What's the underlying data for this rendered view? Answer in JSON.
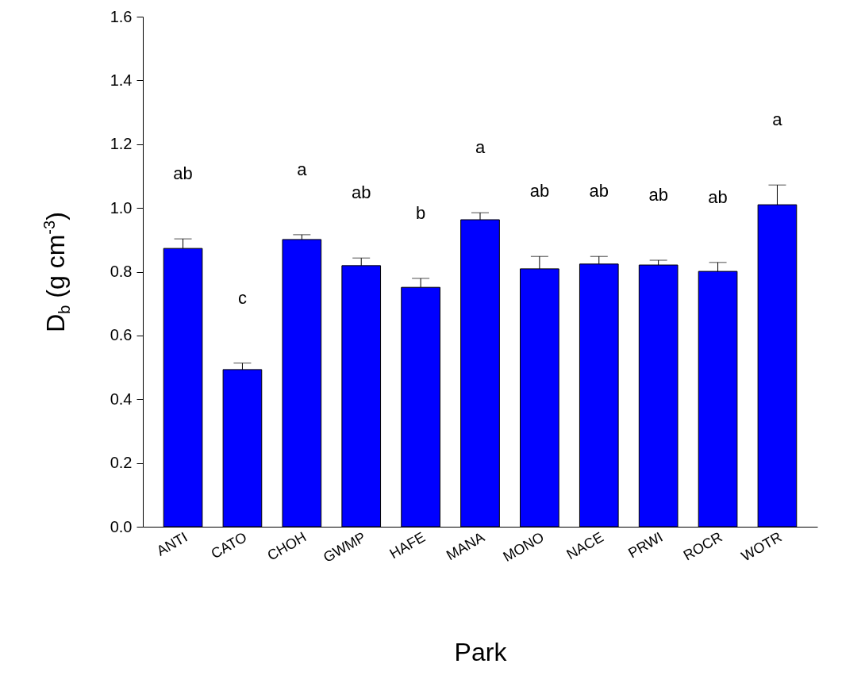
{
  "chart_data": {
    "type": "bar",
    "xlabel": "Park",
    "ylabel": "D$_{b}$ (g cm$^{-3}$)",
    "categories": [
      "ANTI",
      "CATO",
      "CHOH",
      "GWMP",
      "HAFE",
      "MANA",
      "MONO",
      "NACE",
      "PRWI",
      "ROCR",
      "WOTR"
    ],
    "values": [
      0.873,
      0.493,
      0.901,
      0.819,
      0.751,
      0.963,
      0.809,
      0.824,
      0.821,
      0.801,
      1.01
    ],
    "errors": [
      [
        0.873,
        0.903
      ],
      [
        0.493,
        0.513
      ],
      [
        0.901,
        0.916
      ],
      [
        0.819,
        0.843
      ],
      [
        0.751,
        0.779
      ],
      [
        0.963,
        0.985
      ],
      [
        0.809,
        0.848
      ],
      [
        0.824,
        0.848
      ],
      [
        0.821,
        0.836
      ],
      [
        0.801,
        0.829
      ],
      [
        1.01,
        1.072
      ]
    ],
    "color": "#0000ff",
    "ylim": [
      0,
      1.6
    ],
    "yticks": [
      {
        "value": 0,
        "label": "0.0"
      },
      0.2,
      0.4,
      0.6,
      0.8,
      {
        "value": 1,
        "label": "1.0"
      },
      1.2,
      1.4,
      1.6
    ],
    "annotations": [
      "ab",
      "c",
      "a",
      "ab",
      "b",
      "a",
      "ab",
      "ab",
      "ab",
      "ab",
      "a"
    ]
  }
}
